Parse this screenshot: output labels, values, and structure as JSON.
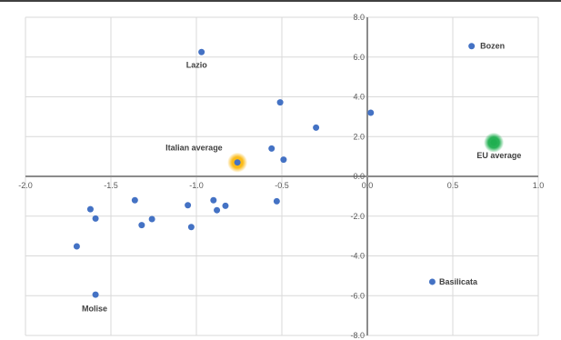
{
  "chart_data": {
    "type": "scatter",
    "xlim": [
      -2.0,
      1.0
    ],
    "ylim": [
      -8.0,
      8.0
    ],
    "x_ticks": [
      -2.0,
      -1.5,
      -1.0,
      -0.5,
      0.0,
      0.5,
      1.0
    ],
    "y_ticks": [
      -8.0,
      -6.0,
      -4.0,
      -2.0,
      0.0,
      2.0,
      4.0,
      6.0,
      8.0
    ],
    "x_tick_labels": [
      "-2.0",
      "-1.5",
      "-1.0",
      "-0.5",
      "0.0",
      "0.5",
      "1.0"
    ],
    "y_tick_labels": [
      "-8.0",
      "-6.0",
      "-4.0",
      "-2.0",
      "0.0",
      "2.0",
      "4.0",
      "6.0",
      "8.0"
    ],
    "grid": true,
    "marker_color": "#4472c4",
    "points": [
      {
        "x": -0.97,
        "y": 6.25
      },
      {
        "x": -0.51,
        "y": 3.72
      },
      {
        "x": -0.3,
        "y": 2.45
      },
      {
        "x": 0.02,
        "y": 3.2
      },
      {
        "x": -0.56,
        "y": 1.4
      },
      {
        "x": -0.49,
        "y": 0.84
      },
      {
        "x": -1.62,
        "y": -1.65
      },
      {
        "x": -1.59,
        "y": -2.12
      },
      {
        "x": -1.36,
        "y": -1.2
      },
      {
        "x": -1.32,
        "y": -2.45
      },
      {
        "x": -1.26,
        "y": -2.15
      },
      {
        "x": -1.05,
        "y": -1.45
      },
      {
        "x": -1.03,
        "y": -2.55
      },
      {
        "x": -0.9,
        "y": -1.2
      },
      {
        "x": -0.88,
        "y": -1.7
      },
      {
        "x": -0.83,
        "y": -1.48
      },
      {
        "x": -0.53,
        "y": -1.25
      },
      {
        "x": -1.7,
        "y": -3.52
      },
      {
        "x": -1.59,
        "y": -5.95
      },
      {
        "x": 0.38,
        "y": -5.3
      },
      {
        "x": 0.61,
        "y": 6.55
      }
    ],
    "highlights": [
      {
        "name": "Italian average",
        "x": -0.76,
        "y": 0.7,
        "color": "#fbb80f",
        "dot_color": "#4472c4"
      },
      {
        "name": "EU average",
        "x": 0.74,
        "y": 1.7,
        "color": "#1faf50",
        "dot_color": "#1faf50"
      }
    ],
    "annotations": [
      {
        "text": "Lazio",
        "x": -1.06,
        "y": 5.6,
        "anchor": "start"
      },
      {
        "text": "Bozen",
        "x": 0.66,
        "y": 6.55,
        "anchor": "start"
      },
      {
        "text": "Italian average",
        "x": -1.18,
        "y": 1.45,
        "anchor": "start"
      },
      {
        "text": "EU average",
        "x": 0.64,
        "y": 1.05,
        "anchor": "start"
      },
      {
        "text": "Basilicata",
        "x": 0.42,
        "y": -5.3,
        "anchor": "start"
      },
      {
        "text": "Molise",
        "x": -1.67,
        "y": -6.65,
        "anchor": "start"
      }
    ]
  }
}
